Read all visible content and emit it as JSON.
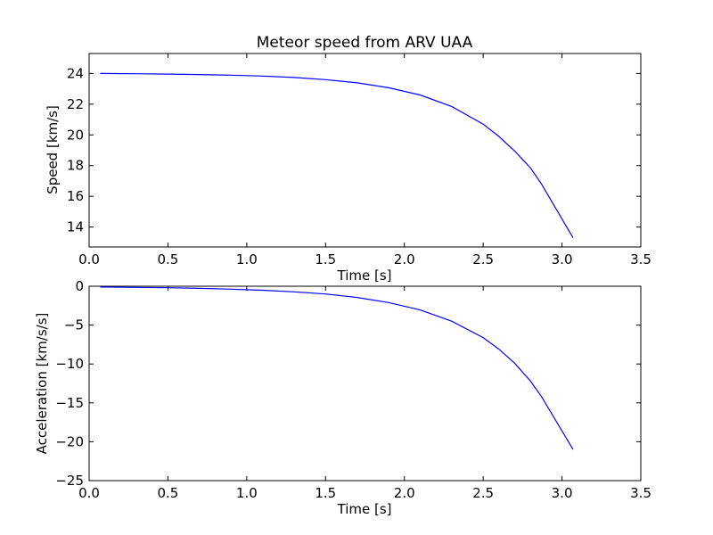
{
  "chart_data": [
    {
      "type": "line",
      "title": "Meteor speed from  ARV UAA",
      "xlabel": "Time [s]",
      "ylabel": "Speed [km/s]",
      "xlim": [
        0.0,
        3.5
      ],
      "ylim": [
        12.7,
        25.3
      ],
      "grid": false,
      "xticks": [
        "0.0",
        "0.5",
        "1.0",
        "1.5",
        "2.0",
        "2.5",
        "3.0",
        "3.5"
      ],
      "yticks": [
        "14",
        "16",
        "18",
        "20",
        "22",
        "24"
      ],
      "line_color": "#0000ff",
      "series": [
        {
          "x": [
            0.07,
            0.3,
            0.5,
            0.7,
            0.9,
            1.1,
            1.3,
            1.5,
            1.7,
            1.9,
            2.1,
            2.3,
            2.5,
            2.6,
            2.7,
            2.8,
            2.87,
            3.07
          ],
          "values": [
            24.0,
            23.98,
            23.96,
            23.93,
            23.89,
            23.83,
            23.74,
            23.6,
            23.39,
            23.07,
            22.6,
            21.85,
            20.7,
            19.9,
            18.95,
            17.85,
            16.8,
            13.3
          ]
        }
      ]
    },
    {
      "type": "line",
      "title": "",
      "xlabel": "Time [s]",
      "ylabel": "Acceleration [km/s/s]",
      "xlim": [
        0.0,
        3.5
      ],
      "ylim": [
        -25,
        0
      ],
      "grid": false,
      "xticks": [
        "0.0",
        "0.5",
        "1.0",
        "1.5",
        "2.0",
        "2.5",
        "3.0",
        "3.5"
      ],
      "yticks": [
        "−25",
        "−20",
        "−15",
        "−10",
        "−5",
        "0"
      ],
      "line_color": "#0000ff",
      "series": [
        {
          "x": [
            0.07,
            0.3,
            0.5,
            0.7,
            0.9,
            1.1,
            1.3,
            1.5,
            1.7,
            1.9,
            2.1,
            2.3,
            2.5,
            2.6,
            2.7,
            2.8,
            2.87,
            3.07
          ],
          "values": [
            -0.1,
            -0.15,
            -0.2,
            -0.28,
            -0.38,
            -0.52,
            -0.72,
            -1.0,
            -1.45,
            -2.1,
            -3.05,
            -4.5,
            -6.6,
            -8.1,
            -9.9,
            -12.2,
            -14.2,
            -21.0
          ]
        }
      ]
    }
  ]
}
